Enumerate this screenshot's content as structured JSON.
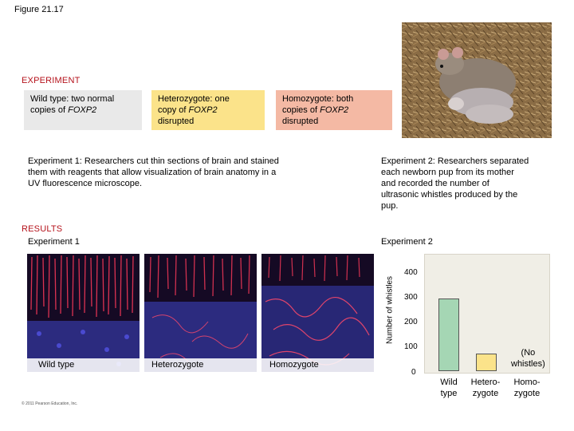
{
  "figure_label": "Figure 21.17",
  "experiment_header": "EXPERIMENT",
  "boxes": {
    "wild": {
      "line1": "Wild type: two normal",
      "line2a": "copies of ",
      "gene": "FOXP2",
      "line2b": ""
    },
    "het": {
      "line1": "Heterozygote: one",
      "line2a": "copy of ",
      "gene": "FOXP2",
      "line3": "disrupted"
    },
    "hom": {
      "line1": "Homozygote: both",
      "line2a": "copies of ",
      "gene": "FOXP2",
      "line3": "disrupted"
    }
  },
  "exp1_text": {
    "l1": "Experiment 1: Researchers cut thin sections of brain and stained",
    "l2": "them with reagents that allow visualization of brain anatomy in a",
    "l3": "UV fluorescence microscope."
  },
  "exp2_text": {
    "l1": "Experiment 2: Researchers separated",
    "l2": "each newborn pup from its mother",
    "l3": "and recorded the number of",
    "l4": "ultrasonic whistles produced by the",
    "l5": "pup."
  },
  "results_header": "RESULTS",
  "exp1_label": "Experiment 1",
  "exp2_label": "Experiment 2",
  "micrograph_captions": [
    "Wild type",
    "Heterozygote",
    "Homozygote"
  ],
  "colors": {
    "wild_box": "#e9e9e9",
    "het_box": "#fbe38a",
    "hom_box": "#f4b9a4",
    "header_red": "#b5121b",
    "bar_green": "#a5d6b4",
    "bar_yellow": "#fbe38a"
  },
  "chart_data": {
    "type": "bar",
    "ylabel": "Number of whistles",
    "ylim": [
      0,
      450
    ],
    "yticks": [
      "0",
      "100",
      "200",
      "300",
      "400"
    ],
    "categories": [
      {
        "l1": "Wild",
        "l2": "type"
      },
      {
        "l1": "Hetero-",
        "l2": "zygote"
      },
      {
        "l1": "Homo-",
        "l2": "zygote"
      }
    ],
    "values": [
      295,
      70,
      0
    ],
    "annotation": {
      "l1": "(No",
      "l2": "whistles)"
    }
  },
  "copyright": "© 2011 Pearson Education, Inc."
}
